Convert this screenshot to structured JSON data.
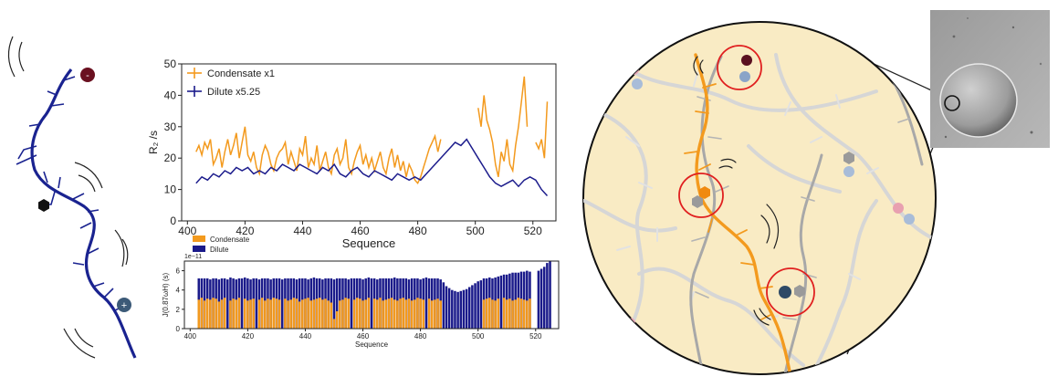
{
  "chart_data": [
    {
      "type": "line",
      "xlabel": "Sequence",
      "ylabel": "R₂ /s",
      "xlim": [
        398,
        528
      ],
      "ylim": [
        0,
        50
      ],
      "xticks": [
        400,
        420,
        440,
        460,
        480,
        500,
        520
      ],
      "yticks": [
        0,
        10,
        20,
        30,
        40,
        50
      ],
      "legend_position": "top-left",
      "grid": false,
      "series": [
        {
          "name": "Condensate x1",
          "color": "#f39a1e",
          "segments": [
            {
              "x": [
                403,
                404,
                405,
                406,
                407,
                408,
                409,
                410,
                411,
                412,
                413,
                414,
                415,
                416,
                417,
                418,
                419,
                420,
                421,
                422,
                423,
                424,
                425,
                426,
                427,
                428,
                429,
                430,
                431,
                432,
                433,
                434,
                435,
                436,
                437,
                438,
                439,
                440,
                441,
                442,
                443,
                444,
                445,
                446,
                447,
                448,
                449,
                450,
                451,
                452,
                453,
                454,
                455,
                456,
                457,
                458,
                459,
                460,
                461,
                462,
                463,
                464,
                465,
                466,
                467,
                468,
                469,
                470,
                471,
                472,
                473,
                474,
                475,
                476,
                477,
                478,
                479,
                480,
                481,
                482,
                483,
                484,
                485,
                486,
                487,
                488
              ],
              "y": [
                22,
                24,
                21,
                25,
                23,
                26,
                18,
                20,
                23,
                17,
                22,
                26,
                21,
                24,
                28,
                20,
                25,
                30,
                21,
                19,
                22,
                17,
                15,
                21,
                24,
                22,
                18,
                16,
                20,
                22,
                23,
                25,
                18,
                22,
                19,
                16,
                23,
                21,
                27,
                17,
                20,
                18,
                24,
                16,
                19,
                22,
                17,
                15,
                21,
                23,
                18,
                20,
                26,
                17,
                15,
                19,
                22,
                24,
                18,
                21,
                17,
                20,
                16,
                19,
                22,
                17,
                15,
                20,
                23,
                17,
                21,
                16,
                19,
                14,
                18,
                16,
                13,
                12,
                14,
                17,
                20,
                23,
                25,
                27,
                22,
                26
              ]
            },
            {
              "x": [
                501,
                502,
                503,
                504,
                505,
                506,
                507,
                508,
                509,
                510,
                511,
                512,
                513,
                514,
                515,
                516,
                517,
                518
              ],
              "y": [
                36,
                30,
                40,
                32,
                29,
                25,
                18,
                14,
                22,
                19,
                26,
                18,
                16,
                24,
                30,
                38,
                46,
                30
              ]
            },
            {
              "x": [
                521,
                522,
                523,
                524,
                525
              ],
              "y": [
                25,
                23,
                26,
                20,
                38
              ]
            }
          ]
        },
        {
          "name": "Dilute x5.25",
          "color": "#1c1c8c",
          "segments": [
            {
              "x": [
                403,
                405,
                407,
                409,
                411,
                413,
                415,
                417,
                419,
                421,
                423,
                425,
                427,
                429,
                431,
                433,
                435,
                437,
                439,
                441,
                443,
                445,
                447,
                449,
                451,
                453,
                455,
                457,
                459,
                461,
                463,
                465,
                467,
                469,
                471,
                473,
                475,
                477,
                479,
                481,
                483,
                485,
                487,
                489,
                491,
                493,
                495,
                497,
                499,
                501,
                503,
                505,
                507,
                509,
                511,
                513,
                515,
                517,
                519,
                521,
                523,
                525
              ],
              "y": [
                12,
                14,
                13,
                15,
                14,
                16,
                15,
                17,
                16,
                17,
                15,
                16,
                15,
                17,
                16,
                18,
                17,
                16,
                18,
                17,
                16,
                15,
                17,
                16,
                18,
                15,
                14,
                16,
                17,
                15,
                14,
                16,
                15,
                14,
                13,
                15,
                14,
                13,
                14,
                13,
                15,
                17,
                19,
                21,
                23,
                25,
                24,
                26,
                23,
                20,
                17,
                14,
                12,
                11,
                12,
                13,
                11,
                13,
                14,
                13,
                10,
                8
              ]
            }
          ]
        }
      ]
    },
    {
      "type": "bar",
      "xlabel": "Sequence",
      "ylabel": "J(0.87ωH) (s)",
      "exponent_label": "1e−11",
      "xlim": [
        398,
        528
      ],
      "ylim": [
        0,
        7
      ],
      "xticks": [
        400,
        420,
        440,
        460,
        480,
        500,
        520
      ],
      "yticks": [
        0,
        2,
        4,
        6
      ],
      "legend_position": "above-left",
      "series": [
        {
          "name": "Condensate",
          "color": "#f39a1e",
          "values_note_hidden": ""
        },
        {
          "name": "Dilute",
          "color": "#1a1a8a"
        }
      ],
      "x": [
        403,
        404,
        405,
        406,
        407,
        408,
        409,
        410,
        411,
        412,
        413,
        414,
        415,
        416,
        417,
        418,
        419,
        420,
        421,
        422,
        423,
        424,
        425,
        426,
        427,
        428,
        429,
        430,
        431,
        432,
        433,
        434,
        435,
        436,
        437,
        438,
        439,
        440,
        441,
        442,
        443,
        444,
        445,
        446,
        447,
        448,
        449,
        450,
        451,
        452,
        453,
        454,
        455,
        456,
        457,
        458,
        459,
        460,
        461,
        462,
        463,
        464,
        465,
        466,
        467,
        468,
        469,
        470,
        471,
        472,
        473,
        474,
        475,
        476,
        477,
        478,
        479,
        480,
        481,
        482,
        483,
        484,
        485,
        486,
        487,
        488,
        489,
        490,
        491,
        492,
        493,
        494,
        495,
        496,
        497,
        498,
        499,
        500,
        501,
        502,
        503,
        504,
        505,
        506,
        507,
        508,
        509,
        510,
        511,
        512,
        513,
        514,
        515,
        516,
        517,
        518,
        521,
        522,
        523,
        524,
        525
      ],
      "dilute": [
        5.2,
        5.2,
        5.2,
        5.2,
        5.1,
        5.2,
        5.2,
        5.1,
        5.2,
        5.2,
        5.1,
        5.3,
        5.2,
        5.1,
        5.2,
        5.2,
        5.3,
        5.2,
        5.1,
        5.2,
        5.2,
        5.1,
        5.2,
        5.2,
        5.2,
        5.1,
        5.2,
        5.2,
        5.2,
        5.1,
        5.2,
        5.2,
        5.2,
        5.2,
        5.1,
        5.2,
        5.2,
        5.2,
        5.1,
        5.2,
        5.3,
        5.2,
        5.2,
        5.1,
        5.2,
        5.2,
        5.2,
        5.1,
        5.2,
        5.2,
        5.2,
        5.2,
        5.1,
        5.2,
        5.2,
        5.2,
        5.2,
        5.1,
        5.2,
        5.3,
        5.2,
        5.2,
        5.1,
        5.2,
        5.2,
        5.2,
        5.2,
        5.2,
        5.3,
        5.2,
        5.2,
        5.2,
        5.2,
        5.1,
        5.2,
        5.2,
        5.2,
        5.1,
        5.2,
        5.3,
        5.2,
        5.2,
        5.2,
        5.2,
        5.1,
        4.8,
        4.4,
        4.2,
        4.0,
        3.9,
        3.8,
        3.9,
        4.0,
        4.1,
        4.3,
        4.5,
        4.7,
        4.9,
        5.0,
        5.2,
        5.2,
        5.3,
        5.2,
        5.3,
        5.4,
        5.5,
        5.6,
        5.6,
        5.7,
        5.8,
        5.8,
        5.8,
        5.9,
        5.9,
        6.0,
        5.9,
        6.0,
        6.2,
        6.4,
        6.8,
        7.0
      ],
      "condensate": [
        3.0,
        3.2,
        2.9,
        3.1,
        3.0,
        3.2,
        3.1,
        2.8,
        3.0,
        3.2,
        0,
        2.9,
        3.1,
        3.0,
        3.2,
        0,
        3.1,
        2.9,
        3.0,
        3.1,
        0,
        3.0,
        3.2,
        2.9,
        3.1,
        3.0,
        3.2,
        3.1,
        3.0,
        0,
        3.1,
        2.9,
        3.0,
        3.2,
        3.1,
        2.8,
        3.0,
        3.1,
        3.2,
        2.9,
        3.0,
        3.1,
        3.2,
        3.0,
        3.1,
        2.9,
        2.7,
        1.0,
        1.8,
        2.9,
        3.0,
        3.2,
        3.1,
        0,
        3.0,
        3.2,
        3.1,
        2.9,
        3.0,
        3.2,
        0,
        3.1,
        3.0,
        3.2,
        2.9,
        3.0,
        3.1,
        3.2,
        3.0,
        2.9,
        3.1,
        3.2,
        3.0,
        3.1,
        2.9,
        3.0,
        3.2,
        3.1,
        3.0,
        0,
        3.1,
        2.9,
        3.0,
        3.1,
        2.9,
        0,
        0,
        0,
        0,
        0,
        0,
        0,
        0,
        0,
        0,
        0,
        0,
        0,
        0,
        3.0,
        3.1,
        3.2,
        3.0,
        2.9,
        3.1,
        0,
        3.2,
        3.0,
        3.1,
        2.9,
        3.0,
        3.2,
        3.1,
        3.0,
        2.9,
        3.1,
        0,
        0,
        0,
        0,
        0
      ]
    }
  ]
}
